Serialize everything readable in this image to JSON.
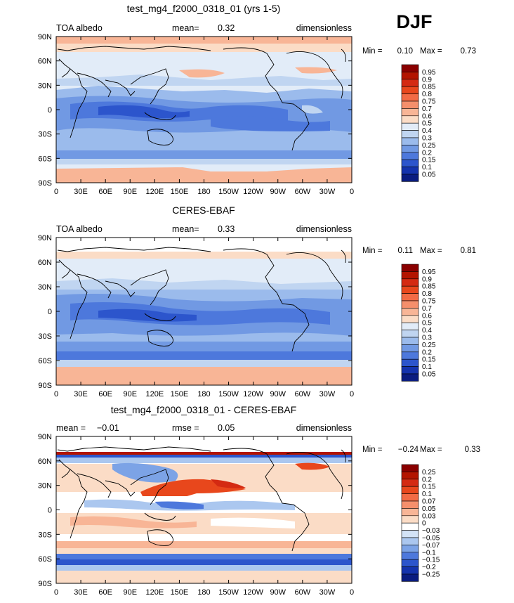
{
  "season": "DJF",
  "lat_labels": [
    "90N",
    "60N",
    "30N",
    "0",
    "30S",
    "60S",
    "90S"
  ],
  "lon_labels": [
    "0",
    "30E",
    "60E",
    "90E",
    "120E",
    "150E",
    "180",
    "150W",
    "120W",
    "90W",
    "60W",
    "30W",
    "0"
  ],
  "panels": [
    {
      "title": "test_mg4_f2000_0318_01 (yrs 1-5)",
      "left_label": "TOA albedo",
      "mid_label": "mean=",
      "mid_value": "0.32",
      "right_label": "dimensionless",
      "min_label": "Min =",
      "min_value": "0.10",
      "max_label": "Max =",
      "max_value": "0.73",
      "colorbar_labels": [
        "0.95",
        "0.9",
        "0.85",
        "0.8",
        "0.75",
        "0.7",
        "0.6",
        "0.5",
        "0.4",
        "0.3",
        "0.25",
        "0.2",
        "0.15",
        "0.1",
        "0.05"
      ]
    },
    {
      "title": "CERES-EBAF",
      "left_label": "TOA albedo",
      "mid_label": "mean=",
      "mid_value": "0.33",
      "right_label": "dimensionless",
      "min_label": "Min =",
      "min_value": "0.11",
      "max_label": "Max =",
      "max_value": "0.81",
      "colorbar_labels": [
        "0.95",
        "0.9",
        "0.85",
        "0.8",
        "0.75",
        "0.7",
        "0.6",
        "0.5",
        "0.4",
        "0.3",
        "0.25",
        "0.2",
        "0.15",
        "0.1",
        "0.05"
      ]
    },
    {
      "title": "test_mg4_f2000_0318_01 - CERES-EBAF",
      "left_label": "mean =",
      "left_value": "−0.01",
      "mid_label": "rmse =",
      "mid_value": "0.05",
      "right_label": "dimensionless",
      "min_label": "Min =",
      "min_value": "−0.24",
      "max_label": "Max =",
      "max_value": "0.33",
      "colorbar_labels": [
        "0.25",
        "0.2",
        "0.15",
        "0.1",
        "0.07",
        "0.05",
        "0.03",
        "0",
        "−0.03",
        "−0.05",
        "−0.07",
        "−0.1",
        "−0.15",
        "−0.2",
        "−0.25"
      ]
    }
  ],
  "colors": {
    "abs_palette": [
      "#8a0000",
      "#b31400",
      "#d42a12",
      "#e8471c",
      "#f26b45",
      "#f58f6c",
      "#f8b596",
      "#fbdcc6",
      "#e2ecf8",
      "#c0d5f1",
      "#9bbbec",
      "#7199e3",
      "#4d78dc",
      "#2c55cc",
      "#1433ad",
      "#0a1c80"
    ],
    "diff_palette": [
      "#8a0000",
      "#b31400",
      "#d42a12",
      "#e8471c",
      "#f26b45",
      "#f58f6c",
      "#f8b596",
      "#fbdcc6",
      "#ffffff",
      "#d3e3f6",
      "#abc7ef",
      "#7ca3e6",
      "#4d78dc",
      "#2c55cc",
      "#1433ad",
      "#0a1c80"
    ]
  }
}
